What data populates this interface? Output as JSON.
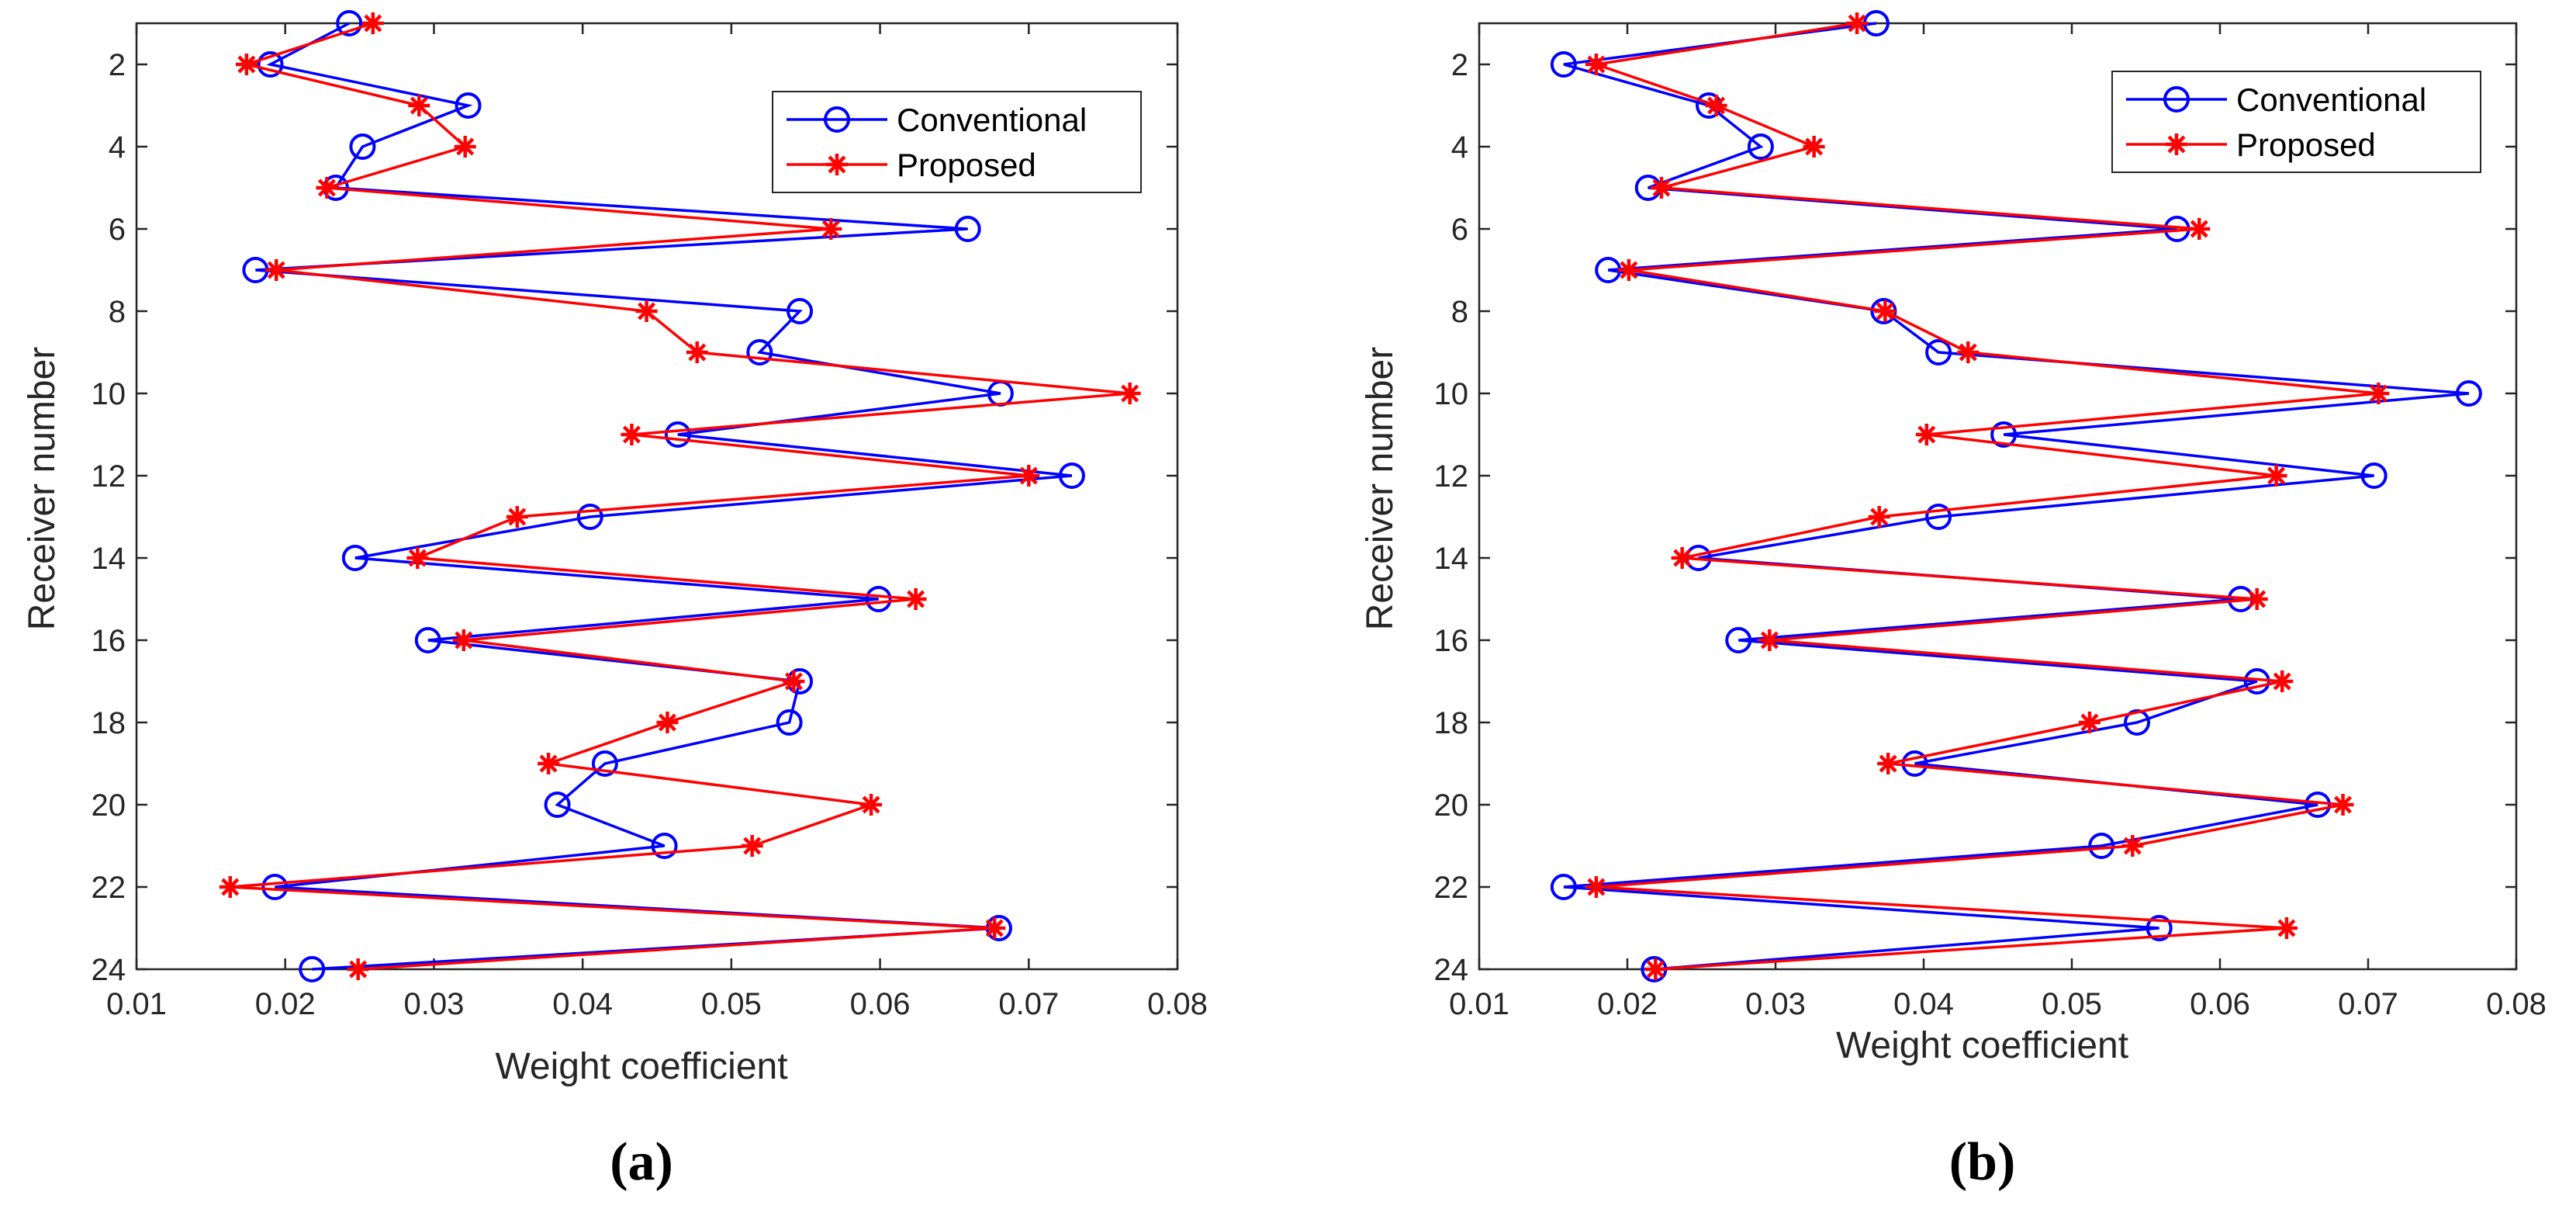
{
  "colors": {
    "conventional": "#0000ff",
    "proposed": "#ff0000",
    "axis": "#262626"
  },
  "chart_data": [
    {
      "type": "line",
      "panel": "(a)",
      "xlabel": "Weight coefficient",
      "ylabel": "Receiver number",
      "xlim": [
        0.01,
        0.08
      ],
      "ylim": [
        1,
        24
      ],
      "y_reversed": true,
      "xticks": [
        0.01,
        0.02,
        0.03,
        0.04,
        0.05,
        0.06,
        0.07,
        0.08
      ],
      "xtick_labels": [
        "0.01",
        "0.02",
        "0.03",
        "0.04",
        "0.05",
        "0.06",
        "0.07",
        "0.08"
      ],
      "yticks": [
        2,
        4,
        6,
        8,
        10,
        12,
        14,
        16,
        18,
        20,
        22,
        24
      ],
      "ytick_labels": [
        "2",
        "4",
        "6",
        "8",
        "10",
        "12",
        "14",
        "16",
        "18",
        "20",
        "22",
        "24"
      ],
      "legend_position": "top-right",
      "y": [
        1,
        2,
        3,
        4,
        5,
        6,
        7,
        8,
        9,
        10,
        11,
        12,
        13,
        14,
        15,
        16,
        17,
        18,
        19,
        20,
        21,
        22,
        23,
        24
      ],
      "series": [
        {
          "name": "Conventional",
          "marker": "circle",
          "values": [
            0.0243,
            0.019,
            0.0323,
            0.0252,
            0.0234,
            0.0659,
            0.018,
            0.0546,
            0.0519,
            0.0681,
            0.0464,
            0.0729,
            0.0405,
            0.0247,
            0.0599,
            0.0296,
            0.0546,
            0.0539,
            0.0415,
            0.0383,
            0.0455,
            0.0193,
            0.068,
            0.0218
          ]
        },
        {
          "name": "Proposed",
          "marker": "asterisk",
          "values": [
            0.0259,
            0.0174,
            0.029,
            0.0321,
            0.0228,
            0.0567,
            0.0194,
            0.0443,
            0.0477,
            0.0768,
            0.0433,
            0.07,
            0.0356,
            0.0289,
            0.0624,
            0.032,
            0.0542,
            0.0457,
            0.0377,
            0.0594,
            0.0514,
            0.0163,
            0.0677,
            0.0249
          ]
        }
      ]
    },
    {
      "type": "line",
      "panel": "(b)",
      "xlabel": "Weight coefficient",
      "ylabel": "Receiver number",
      "xlim": [
        0.01,
        0.08
      ],
      "ylim": [
        1,
        24
      ],
      "y_reversed": true,
      "xticks": [
        0.01,
        0.02,
        0.03,
        0.04,
        0.05,
        0.06,
        0.07,
        0.08
      ],
      "xtick_labels": [
        "0.01",
        "0.02",
        "0.03",
        "0.04",
        "0.05",
        "0.06",
        "0.07",
        "0.08"
      ],
      "yticks": [
        2,
        4,
        6,
        8,
        10,
        12,
        14,
        16,
        18,
        20,
        22,
        24
      ],
      "ytick_labels": [
        "2",
        "4",
        "6",
        "8",
        "10",
        "12",
        "14",
        "16",
        "18",
        "20",
        "22",
        "24"
      ],
      "legend_position": "top-right",
      "y": [
        1,
        2,
        3,
        4,
        5,
        6,
        7,
        8,
        9,
        10,
        11,
        12,
        13,
        14,
        15,
        16,
        17,
        18,
        19,
        20,
        21,
        22,
        23,
        24
      ],
      "series": [
        {
          "name": "Conventional",
          "marker": "circle",
          "values": [
            0.0368,
            0.0157,
            0.0255,
            0.029,
            0.0214,
            0.0571,
            0.0187,
            0.0373,
            0.041,
            0.0768,
            0.0454,
            0.0704,
            0.041,
            0.0248,
            0.0614,
            0.0275,
            0.0625,
            0.0544,
            0.0394,
            0.0666,
            0.052,
            0.0157,
            0.0559,
            0.0218
          ]
        },
        {
          "name": "Proposed",
          "marker": "asterisk",
          "values": [
            0.0355,
            0.0179,
            0.026,
            0.0326,
            0.0223,
            0.0586,
            0.0201,
            0.0374,
            0.043,
            0.0707,
            0.0402,
            0.0638,
            0.037,
            0.0237,
            0.0625,
            0.0296,
            0.0642,
            0.0512,
            0.0376,
            0.0683,
            0.0541,
            0.0179,
            0.0645,
            0.0219
          ]
        }
      ]
    }
  ]
}
